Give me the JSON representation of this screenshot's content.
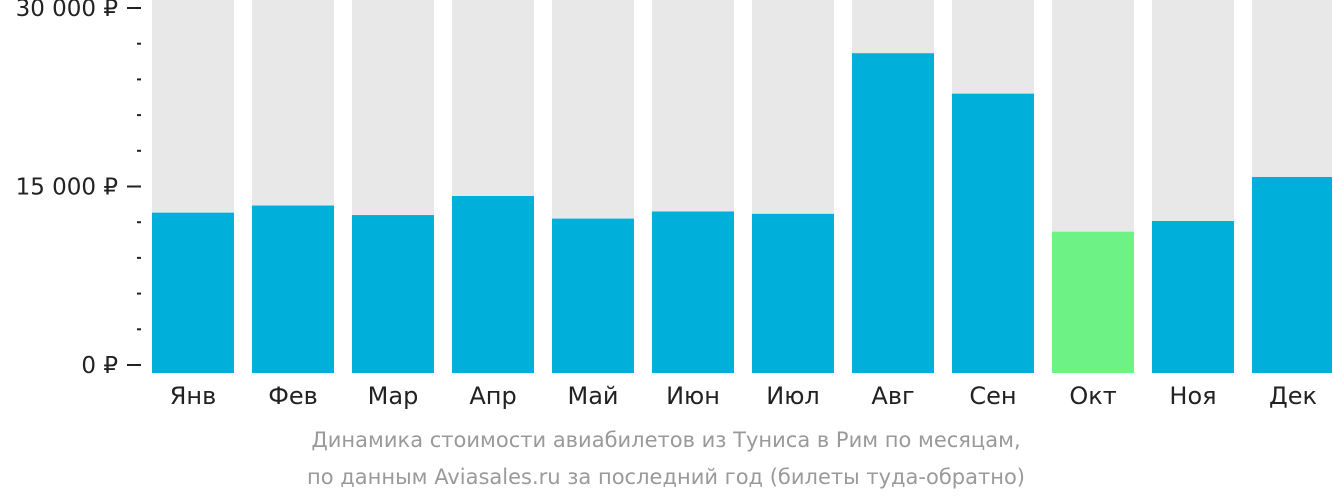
{
  "chart_data": {
    "type": "bar",
    "categories": [
      "Янв",
      "Фев",
      "Мар",
      "Апр",
      "Май",
      "Июн",
      "Июл",
      "Авг",
      "Сен",
      "Окт",
      "Ноя",
      "Дек"
    ],
    "values": [
      12800,
      13400,
      12600,
      14200,
      12300,
      12900,
      12700,
      26200,
      22800,
      11200,
      12100,
      15800
    ],
    "highlight_index": 9,
    "ylim": [
      0,
      30000
    ],
    "y_ticks": [
      {
        "value": 30000,
        "label": "30 000 ₽"
      },
      {
        "value": 15000,
        "label": "15 000 ₽"
      },
      {
        "value": 0,
        "label": "0 ₽"
      }
    ],
    "minor_tick_step": 3000,
    "colors": {
      "bar": "#00b0db",
      "highlight": "#6df286",
      "background_bar": "#e8e8e8",
      "axis": "#222222"
    },
    "grid": false,
    "legend": "none"
  },
  "caption": {
    "line1": "Динамика стоимости авиабилетов из Туниса в Рим по месяцам,",
    "line2": "по данным Aviasales.ru за последний год (билеты туда-обратно)"
  }
}
